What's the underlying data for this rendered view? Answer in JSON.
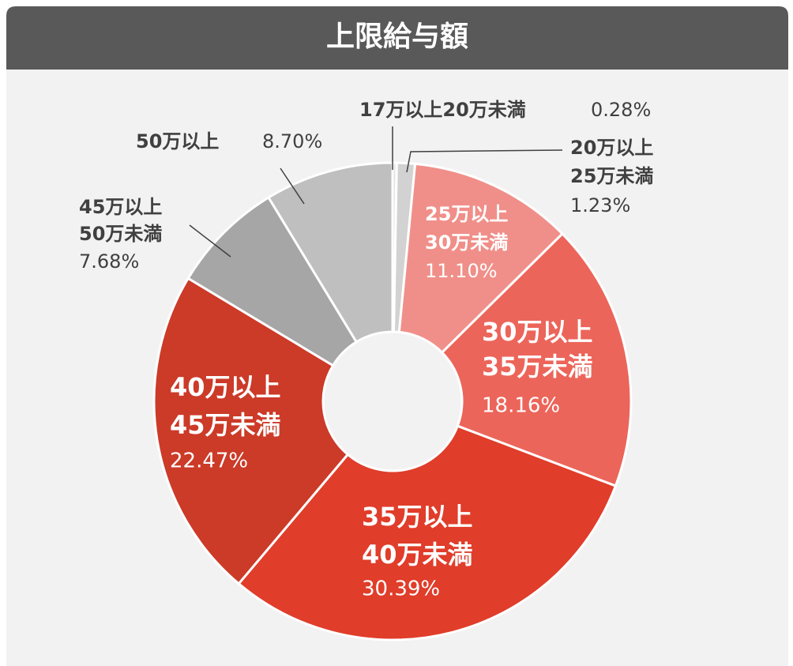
{
  "chart_data": {
    "type": "donut",
    "title": "上限給与額",
    "categories": [
      [
        "17万以上20万未満"
      ],
      [
        "20万以上",
        "25万未満"
      ],
      [
        "25万以上",
        "30万未満"
      ],
      [
        "30万以上",
        "35万未満"
      ],
      [
        "35万以上",
        "40万未満"
      ],
      [
        "40万以上",
        "45万未満"
      ],
      [
        "45万以上",
        "50万未満"
      ],
      [
        "50万以上"
      ]
    ],
    "values": [
      0.28,
      1.23,
      11.1,
      18.16,
      30.39,
      22.47,
      7.68,
      8.7
    ],
    "value_labels": [
      "0.28%",
      "1.23%",
      "11.10%",
      "18.16%",
      "30.39%",
      "22.47%",
      "7.68%",
      "8.70%"
    ],
    "colors": [
      "#e4e4e4",
      "#d2d2d2",
      "#f08f89",
      "#ec655a",
      "#e03d2a",
      "#cc3a28",
      "#a6a6a6",
      "#bfbfbf"
    ]
  }
}
